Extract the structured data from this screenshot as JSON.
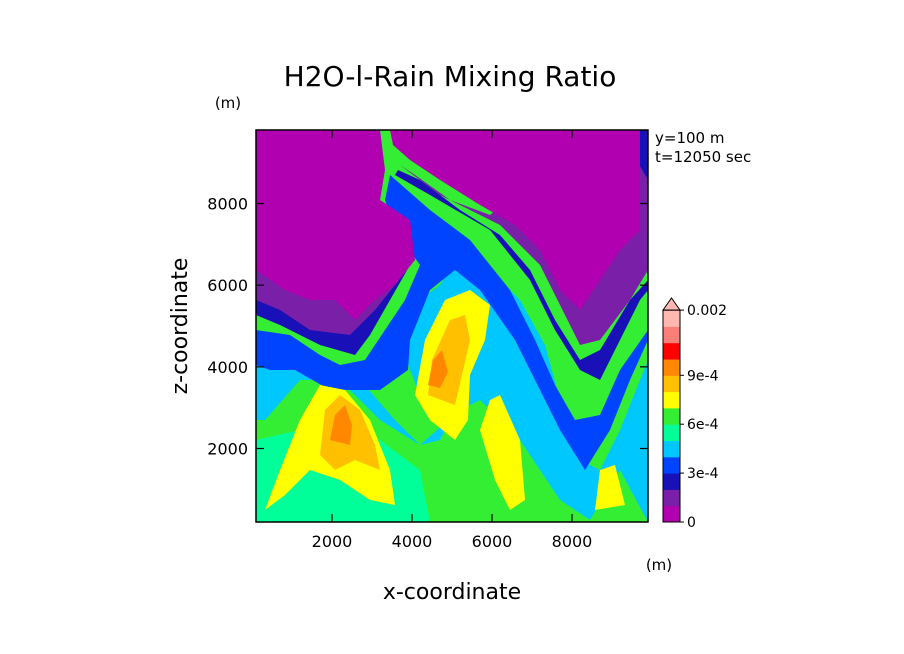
{
  "chart_data": {
    "type": "heatmap",
    "title": "H2O-l-Rain Mixing Ratio",
    "xlabel": "x-coordinate",
    "ylabel": "z-coordinate",
    "x_unit": "(m)",
    "y_unit": "(m)",
    "xlim": [
      100,
      9900
    ],
    "ylim": [
      200,
      9800
    ],
    "x_ticks": [
      2000,
      4000,
      6000,
      8000
    ],
    "y_ticks": [
      2000,
      4000,
      6000,
      8000
    ],
    "x_tick_labels": [
      "2000",
      "4000",
      "6000",
      "8000"
    ],
    "y_tick_labels": [
      "2000",
      "4000",
      "6000",
      "8000"
    ],
    "annotations": [
      "y=100 m",
      "t=12050 sec"
    ],
    "colorbar": {
      "levels": [
        0,
        0.0001,
        0.0002,
        0.0003,
        0.0004,
        0.0005,
        0.0006,
        0.0007,
        0.0008,
        0.0009,
        0.001,
        0.0015,
        0.002
      ],
      "colors": [
        "#b000b0",
        "#7a1fa8",
        "#1a10b8",
        "#0044ff",
        "#00c8ff",
        "#00ff99",
        "#33ee33",
        "#ffff00",
        "#ffc000",
        "#ff8800",
        "#ff0000",
        "#f88078",
        "#ffb8b0"
      ],
      "extend": "max",
      "labels": [
        {
          "value": 0,
          "text": "0"
        },
        {
          "value": 0.0003,
          "text": "3e-4"
        },
        {
          "value": 0.0006,
          "text": "6e-4"
        },
        {
          "value": 0.0009,
          "text": "9e-4"
        },
        {
          "value": 0.002,
          "text": "0.002"
        }
      ]
    }
  }
}
